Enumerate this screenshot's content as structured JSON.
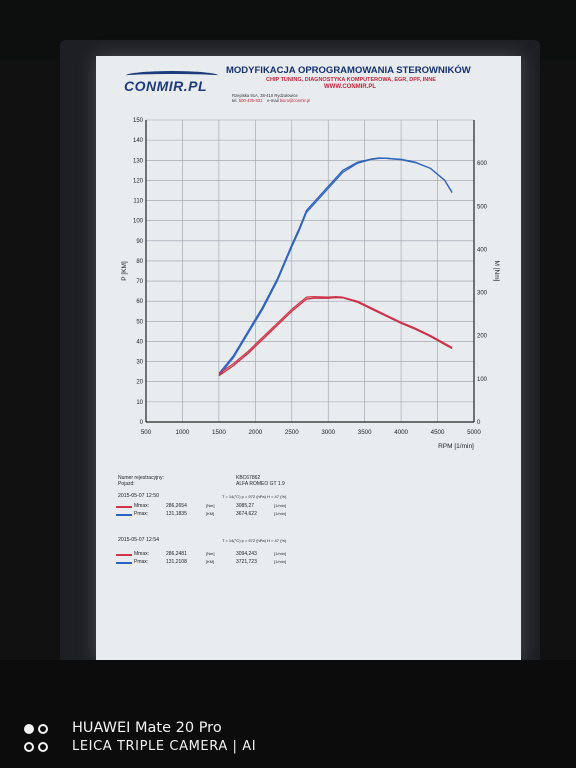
{
  "header": {
    "logo": "CONMIR.PL",
    "title": "MODYFIKACJA OPROGRAMOWANIA STEROWNIKÓW",
    "subtitle": "CHIP TUNING, DIAGNOSTYKA KOMPUTEROWA, EGR, DPF, INNE",
    "url": "WWW.CONMIR.PL",
    "address": "Rzepiska 91A, 38-410 Rydzułowice",
    "phone_label": "tel.",
    "phone": "500-425-831",
    "email_label": "e-mail",
    "email": "biuro@conmir.pl"
  },
  "vehicle": {
    "reg_label": "Numer rejestracyjny:",
    "reg_value": "KBC67862",
    "car_label": "Pojazd:",
    "car_value": "ALFA ROMEO   GT 1.9"
  },
  "runs": [
    {
      "datetime": "2015-05-07  12:50",
      "conditions": "T = 14(°C)  p = 972 (hPa)  H = 47 (%)",
      "m_label": "Mmax:",
      "m_value": "286,2654",
      "m_unit": "[Nm]",
      "m_rpm": "3085,27",
      "m_rpm_unit": "[1/min]",
      "p_label": "Pmax:",
      "p_value": "131,1835",
      "p_unit": "[KM]",
      "p_rpm": "3674,622",
      "p_rpm_unit": "[1/min]"
    },
    {
      "datetime": "2015-05-07  12:54",
      "conditions": "T = 14(°C)  p = 972 (hPa)  H = 47 (%)",
      "m_label": "Mmax:",
      "m_value": "286,2481",
      "m_unit": "[Nm]",
      "m_rpm": "3094,243",
      "m_rpm_unit": "[1/min]",
      "p_label": "Pmax:",
      "p_value": "131,2108",
      "p_unit": "[KM]",
      "p_rpm": "3721,723",
      "p_rpm_unit": "[1/min]"
    }
  ],
  "watermark": {
    "line1": "HUAWEI Mate 20 Pro",
    "line2": "LEICA TRIPLE CAMERA | AI"
  },
  "colors": {
    "power": "#2a5fc4",
    "torque": "#d2364a",
    "grid": "#9aa0a8",
    "axis": "#222222"
  },
  "chart_data": {
    "type": "line",
    "xlabel": "RPM [1/min]",
    "ylabel_left": "P [KM]",
    "ylabel_right": "M [Nm]",
    "xlim": [
      500,
      5000
    ],
    "ylim_left": [
      0,
      150
    ],
    "ylim_right": [
      0,
      700
    ],
    "x_ticks": [
      500,
      1000,
      1500,
      2000,
      2500,
      3000,
      3500,
      4000,
      4500,
      5000
    ],
    "y_ticks_left": [
      0,
      10,
      20,
      30,
      40,
      50,
      60,
      70,
      80,
      90,
      100,
      110,
      120,
      130,
      140,
      150
    ],
    "y_ticks_right": [
      0,
      100,
      200,
      300,
      400,
      500,
      600
    ],
    "grid": true,
    "series": [
      {
        "axis": "left",
        "color": "#2a5fc4",
        "x": [
          1500,
          1700,
          1900,
          2100,
          2300,
          2500,
          2600,
          2700,
          2800,
          3000,
          3200,
          3400,
          3600,
          3700,
          3800,
          4000,
          4200,
          4400,
          4600,
          4700
        ],
        "y": [
          24,
          33,
          45,
          57,
          71,
          88,
          96,
          105,
          109,
          117,
          125,
          129,
          130.7,
          131.2,
          131,
          130.5,
          129,
          126,
          120,
          114
        ]
      },
      {
        "axis": "left",
        "color": "#3466b8",
        "x": [
          1500,
          1700,
          1900,
          2100,
          2300,
          2500,
          2600,
          2700,
          2800,
          3000,
          3200,
          3400,
          3600,
          3700,
          3800,
          4000,
          4200,
          4400,
          4600,
          4700
        ],
        "y": [
          23,
          32,
          44,
          56,
          70,
          87,
          95,
          104,
          108,
          116,
          124,
          128.5,
          130.5,
          131,
          131,
          130.3,
          128.8,
          126,
          120,
          114
        ]
      },
      {
        "axis": "left",
        "color": "#d2364a",
        "x": [
          1500,
          1700,
          1900,
          2100,
          2300,
          2500,
          2600,
          2700,
          2800,
          3000,
          3100,
          3200,
          3400,
          3600,
          3800,
          4000,
          4200,
          4400,
          4600,
          4700
        ],
        "y": [
          24,
          29,
          35,
          42,
          49,
          56,
          59,
          62,
          62.3,
          62,
          62.3,
          62,
          60,
          56.5,
          53,
          49.5,
          46.5,
          43,
          39,
          37
        ]
      },
      {
        "axis": "left",
        "color": "#c9304a",
        "x": [
          1500,
          1700,
          1900,
          2100,
          2300,
          2500,
          2600,
          2700,
          2800,
          3000,
          3100,
          3200,
          3400,
          3600,
          3800,
          4000,
          4200,
          4400,
          4600,
          4700
        ],
        "y": [
          23,
          28,
          34,
          41,
          48,
          55,
          58,
          61,
          61.5,
          61.5,
          61.8,
          61.7,
          59.5,
          56,
          52.5,
          49,
          46,
          42.5,
          38.5,
          36.5
        ]
      }
    ]
  }
}
